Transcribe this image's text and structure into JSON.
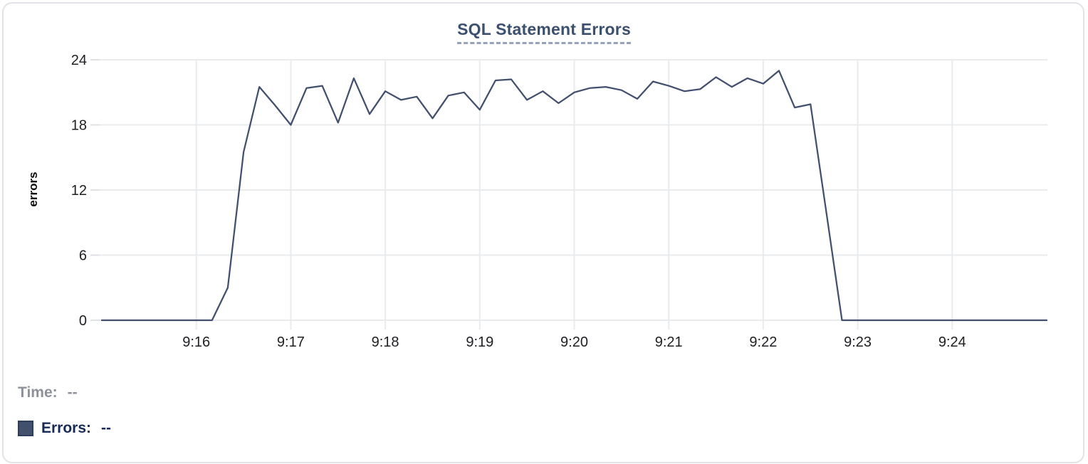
{
  "panel": {
    "background": "#ffffff",
    "border_color": "#e1e3e7"
  },
  "chart_data": {
    "type": "line",
    "title": "SQL Statement Errors",
    "xlabel": "",
    "ylabel": "errors",
    "ylim": [
      0,
      24
    ],
    "yticks": [
      0,
      6,
      12,
      18,
      24
    ],
    "xtick_labels": [
      "9:16",
      "9:17",
      "9:18",
      "9:19",
      "9:20",
      "9:21",
      "9:22",
      "9:23",
      "9:24"
    ],
    "x_start": "9:15:00",
    "x_end": "9:25:00",
    "x_interval_seconds": 10,
    "grid": true,
    "legend_position": "bottom-left",
    "series": [
      {
        "name": "Errors",
        "color": "#42506e",
        "values": [
          0,
          0,
          0,
          0,
          0,
          0,
          0,
          0,
          3,
          15.5,
          21.5,
          19.8,
          18,
          21.4,
          21.6,
          18.2,
          22.3,
          19,
          21.1,
          20.3,
          20.6,
          18.6,
          20.7,
          21,
          19.4,
          22.1,
          22.2,
          20.3,
          21.1,
          20,
          21,
          21.4,
          21.5,
          21.2,
          20.4,
          22,
          21.6,
          21.1,
          21.3,
          22.4,
          21.5,
          22.3,
          21.8,
          23,
          19.6,
          19.9,
          10,
          0,
          0,
          0,
          0,
          0,
          0,
          0,
          0,
          0,
          0,
          0,
          0,
          0,
          0
        ]
      }
    ]
  },
  "legend": {
    "time_label": "Time:",
    "time_value": "--",
    "errors_label": "Errors:",
    "errors_value": "--",
    "swatch_color": "#42506c"
  },
  "colors": {
    "title": "#3b5070",
    "title_underline": "#97a3bd",
    "grid": "#e9ebed",
    "tick": "#dfe1e5",
    "axis_text": "#202124",
    "line": "#42506e",
    "time_label": "#8d9199",
    "errors_label": "#182a58",
    "panel_border": "#e1e3e7"
  }
}
